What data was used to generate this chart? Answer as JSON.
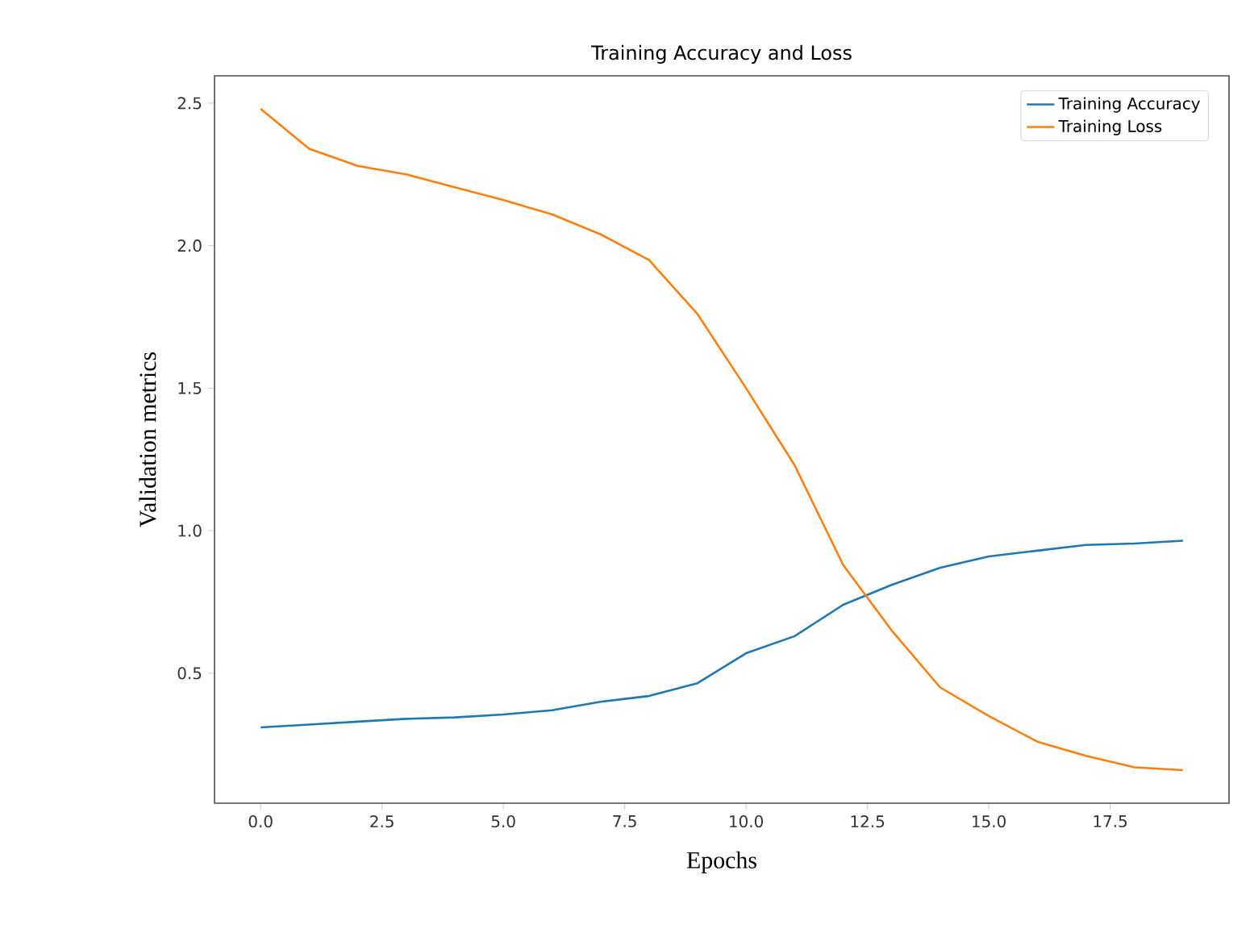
{
  "chart_data": {
    "type": "line",
    "title": "Training Accuracy and Loss",
    "xlabel": "Epochs",
    "ylabel": "Validation metrics",
    "x": [
      0,
      1,
      2,
      3,
      4,
      5,
      6,
      7,
      8,
      9,
      10,
      11,
      12,
      13,
      14,
      15,
      16,
      17,
      18,
      19
    ],
    "series": [
      {
        "name": "Training Accuracy",
        "color": "#1f77b4",
        "values": [
          0.31,
          0.32,
          0.33,
          0.34,
          0.345,
          0.355,
          0.37,
          0.4,
          0.42,
          0.465,
          0.57,
          0.63,
          0.74,
          0.81,
          0.87,
          0.91,
          0.93,
          0.95,
          0.955,
          0.965
        ]
      },
      {
        "name": "Training Loss",
        "color": "#ff7f0e",
        "values": [
          2.48,
          2.34,
          2.28,
          2.25,
          2.205,
          2.16,
          2.11,
          2.04,
          1.95,
          1.76,
          1.5,
          1.23,
          0.88,
          0.65,
          0.45,
          0.35,
          0.26,
          0.21,
          0.17,
          0.16
        ]
      }
    ],
    "xlim": [
      -0.95,
      19.95
    ],
    "ylim": [
      0.044,
      2.596
    ],
    "xticks": [
      {
        "value": 0,
        "label": "0.0"
      },
      {
        "value": 2.5,
        "label": "2.5"
      },
      {
        "value": 5,
        "label": "5.0"
      },
      {
        "value": 7.5,
        "label": "7.5"
      },
      {
        "value": 10,
        "label": "10.0"
      },
      {
        "value": 12.5,
        "label": "12.5"
      },
      {
        "value": 15,
        "label": "15.0"
      },
      {
        "value": 17.5,
        "label": "17.5"
      }
    ],
    "yticks": [
      {
        "value": 0.5,
        "label": "0.5"
      },
      {
        "value": 1,
        "label": "1.0"
      },
      {
        "value": 1.5,
        "label": "1.5"
      },
      {
        "value": 2,
        "label": "2.0"
      },
      {
        "value": 2.5,
        "label": "2.5"
      }
    ],
    "legend": "top right",
    "grid": false,
    "marker": "none",
    "line_style": "solid"
  }
}
